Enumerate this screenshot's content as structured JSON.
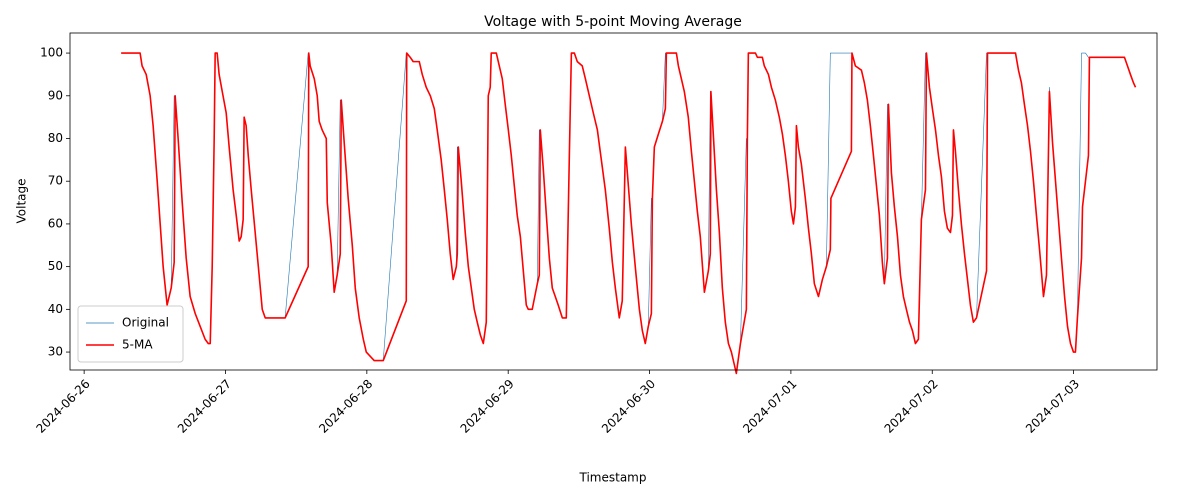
{
  "chart_data": {
    "type": "line",
    "title": "Voltage with 5-point Moving Average",
    "xlabel": "Timestamp",
    "ylabel": "Voltage",
    "xlim": [
      19899.9,
      19907.59
    ],
    "xticks": [
      {
        "value": 19900,
        "label": "2024-06-26"
      },
      {
        "value": 19901,
        "label": "2024-06-27"
      },
      {
        "value": 19902,
        "label": "2024-06-28"
      },
      {
        "value": 19903,
        "label": "2024-06-29"
      },
      {
        "value": 19904,
        "label": "2024-06-30"
      },
      {
        "value": 19905,
        "label": "2024-07-01"
      },
      {
        "value": 19906,
        "label": "2024-07-02"
      },
      {
        "value": 19907,
        "label": "2024-07-03"
      }
    ],
    "ylim": [
      25.8,
      104.7
    ],
    "yticks": [
      30,
      40,
      50,
      60,
      70,
      80,
      90,
      100
    ],
    "grid": false,
    "legend": "lower left",
    "x": [
      19900.262,
      19900.396,
      19900.41,
      19900.439,
      19900.467,
      19900.488,
      19900.517,
      19900.538,
      19900.559,
      19900.587,
      19900.616,
      19900.637,
      19900.644,
      19900.665,
      19900.694,
      19900.722,
      19900.75,
      19900.786,
      19900.821,
      19900.856,
      19900.878,
      19900.892,
      19900.906,
      19900.92,
      19900.927,
      19900.941,
      19900.955,
      19900.977,
      19901.005,
      19901.026,
      19901.054,
      19901.076,
      19901.097,
      19901.111,
      19901.125,
      19901.132,
      19901.146,
      19901.161,
      19901.182,
      19901.21,
      19901.238,
      19901.26,
      19901.281,
      19901.422,
      19901.585,
      19901.589,
      19901.599,
      19901.628,
      19901.649,
      19901.663,
      19901.684,
      19901.713,
      19901.72,
      19901.748,
      19901.769,
      19901.79,
      19901.812,
      19901.819,
      19901.84,
      19901.868,
      19901.897,
      19901.918,
      19901.946,
      19901.975,
      19901.996,
      19902.024,
      19902.052,
      19902.116,
      19902.279,
      19902.282,
      19902.307,
      19902.328,
      19902.371,
      19902.392,
      19902.42,
      19902.449,
      19902.477,
      19902.498,
      19902.526,
      19902.548,
      19902.569,
      19902.59,
      19902.611,
      19902.633,
      19902.64,
      19902.647,
      19902.668,
      19902.696,
      19902.718,
      19902.739,
      19902.76,
      19902.781,
      19902.803,
      19902.824,
      19902.845,
      19902.859,
      19902.873,
      19902.88,
      19902.916,
      19902.937,
      19902.958,
      19902.979,
      19903.001,
      19903.022,
      19903.043,
      19903.064,
      19903.086,
      19903.107,
      19903.128,
      19903.142,
      19903.17,
      19903.206,
      19903.22,
      19903.227,
      19903.248,
      19903.27,
      19903.291,
      19903.312,
      19903.333,
      19903.354,
      19903.383,
      19903.411,
      19903.432,
      19903.447,
      19903.468,
      19903.489,
      19903.524,
      19903.546,
      19903.574,
      19903.602,
      19903.631,
      19903.659,
      19903.687,
      19903.715,
      19903.737,
      19903.758,
      19903.786,
      19903.807,
      19903.829,
      19903.843,
      19903.871,
      19903.899,
      19903.928,
      19903.949,
      19903.97,
      19903.991,
      19904.013,
      19904.02,
      19904.034,
      19904.062,
      19904.091,
      19904.112,
      19904.119,
      19904.19,
      19904.204,
      19904.225,
      19904.246,
      19904.274,
      19904.296,
      19904.317,
      19904.338,
      19904.359,
      19904.388,
      19904.416,
      19904.43,
      19904.434,
      19904.451,
      19904.473,
      19904.494,
      19904.515,
      19904.536,
      19904.558,
      19904.579,
      19904.6,
      19904.614,
      19904.643,
      19904.685,
      19904.692,
      19904.699,
      19904.749,
      19904.763,
      19904.798,
      19904.812,
      19904.841,
      19904.862,
      19904.89,
      19904.918,
      19904.94,
      19904.961,
      19904.982,
      19905.003,
      19905.018,
      19905.032,
      19905.039,
      19905.053,
      19905.074,
      19905.102,
      19905.124,
      19905.145,
      19905.166,
      19905.195,
      19905.223,
      19905.251,
      19905.279,
      19905.283,
      19905.428,
      19905.432,
      19905.456,
      19905.499,
      19905.52,
      19905.541,
      19905.562,
      19905.584,
      19905.605,
      19905.626,
      19905.647,
      19905.661,
      19905.683,
      19905.69,
      19905.711,
      19905.732,
      19905.754,
      19905.775,
      19905.796,
      19905.817,
      19905.839,
      19905.86,
      19905.881,
      19905.902,
      19905.923,
      19905.952,
      19905.959,
      19905.98,
      19906.001,
      19906.023,
      19906.044,
      19906.065,
      19906.086,
      19906.107,
      19906.129,
      19906.143,
      19906.15,
      19906.164,
      19906.185,
      19906.206,
      19906.228,
      19906.249,
      19906.27,
      19906.291,
      19906.313,
      19906.384,
      19906.391,
      19906.589,
      19906.61,
      19906.631,
      19906.652,
      19906.674,
      19906.695,
      19906.716,
      19906.737,
      19906.759,
      19906.787,
      19906.808,
      19906.829,
      19906.851,
      19906.872,
      19906.893,
      19906.914,
      19906.936,
      19906.957,
      19906.978,
      19906.999,
      19907.013,
      19907.027,
      19907.056,
      19907.063,
      19907.084,
      19907.105,
      19907.112,
      19907.36,
      19907.381,
      19907.402,
      19907.424,
      19907.438
    ],
    "series": [
      {
        "name": "Original",
        "color": "#1f77b4",
        "width": 0.6,
        "values": [
          100,
          100,
          97,
          95,
          90,
          83,
          70,
          60,
          50,
          41,
          45,
          90,
          90,
          80,
          65,
          52,
          43,
          39,
          36,
          33,
          32,
          32,
          50,
          80,
          100,
          100,
          95,
          91,
          86,
          78,
          68,
          62,
          56,
          57,
          61,
          85,
          83,
          76,
          68,
          58,
          48,
          40,
          38,
          38,
          100,
          100,
          97,
          94,
          90,
          84,
          82,
          80,
          65,
          55,
          44,
          48,
          89,
          89,
          79,
          66,
          55,
          45,
          38,
          33,
          30,
          29,
          28,
          28,
          100,
          100,
          99,
          98,
          98,
          95,
          92,
          90,
          87,
          82,
          75,
          68,
          61,
          53,
          47,
          50,
          78,
          78,
          70,
          58,
          50,
          45,
          40,
          37,
          34,
          32,
          37,
          90,
          92,
          100,
          100,
          97,
          94,
          88,
          82,
          76,
          69,
          62,
          57,
          49,
          41,
          40,
          40,
          46,
          82,
          82,
          73,
          62,
          52,
          45,
          43,
          41,
          38,
          38,
          75,
          100,
          100,
          98,
          97,
          94,
          90,
          86,
          82,
          75,
          68,
          59,
          51,
          45,
          38,
          42,
          78,
          72,
          60,
          50,
          40,
          35,
          32,
          36,
          66,
          66,
          78,
          81,
          84,
          100,
          100,
          100,
          97,
          94,
          91,
          85,
          77,
          70,
          63,
          57,
          44,
          49,
          91,
          91,
          81,
          68,
          58,
          45,
          37,
          32,
          30,
          27,
          25,
          32,
          80,
          80,
          100,
          100,
          99,
          99,
          97,
          95,
          92,
          89,
          85,
          81,
          76,
          70,
          63,
          60,
          64,
          83,
          78,
          74,
          66,
          59,
          53,
          46,
          43,
          47,
          50,
          100,
          100,
          100,
          100,
          97,
          96,
          93,
          89,
          83,
          76,
          69,
          62,
          51,
          46,
          88,
          88,
          72,
          64,
          57,
          48,
          43,
          40,
          37,
          35,
          32,
          33,
          61,
          100,
          100,
          92,
          87,
          82,
          76,
          71,
          63,
          59,
          58,
          62,
          82,
          77,
          68,
          60,
          53,
          47,
          41,
          37,
          38,
          100,
          100,
          100,
          96,
          93,
          88,
          83,
          77,
          70,
          62,
          54,
          43,
          48,
          92,
          79,
          70,
          61,
          52,
          43,
          36,
          32,
          30,
          30,
          38,
          100,
          100,
          100,
          99,
          99,
          99,
          97,
          95,
          93,
          92
        ]
      },
      {
        "name": "5-MA",
        "color": "#ff0000",
        "width": 1.6,
        "values": [
          100,
          100,
          97,
          95,
          90,
          83,
          70,
          60,
          50,
          41,
          45,
          51,
          90,
          80,
          65,
          52,
          43,
          39,
          36,
          33,
          32,
          32,
          50,
          80,
          100,
          100,
          95,
          91,
          86,
          78,
          68,
          62,
          56,
          57,
          61,
          85,
          83,
          76,
          68,
          58,
          48,
          40,
          38,
          38,
          50,
          100,
          97,
          94,
          90,
          84,
          82,
          80,
          65,
          55,
          44,
          48,
          53,
          89,
          79,
          66,
          55,
          45,
          38,
          33,
          30,
          29,
          28,
          28,
          42,
          100,
          99,
          98,
          98,
          95,
          92,
          90,
          87,
          82,
          75,
          68,
          61,
          53,
          47,
          50,
          53,
          78,
          70,
          58,
          50,
          45,
          40,
          37,
          34,
          32,
          37,
          90,
          92,
          100,
          100,
          97,
          94,
          88,
          82,
          76,
          69,
          62,
          57,
          49,
          41,
          40,
          40,
          46,
          48,
          82,
          73,
          62,
          52,
          45,
          43,
          41,
          38,
          38,
          75,
          100,
          100,
          98,
          97,
          94,
          90,
          86,
          82,
          75,
          68,
          59,
          51,
          45,
          38,
          42,
          78,
          72,
          60,
          50,
          40,
          35,
          32,
          36,
          39,
          66,
          78,
          81,
          84,
          87,
          100,
          100,
          97,
          94,
          91,
          85,
          77,
          70,
          63,
          57,
          44,
          49,
          53,
          91,
          81,
          68,
          58,
          45,
          37,
          32,
          30,
          27,
          25,
          32,
          40,
          80,
          100,
          100,
          99,
          99,
          97,
          95,
          92,
          89,
          85,
          81,
          76,
          70,
          63,
          60,
          64,
          83,
          78,
          74,
          66,
          59,
          53,
          46,
          43,
          47,
          50,
          54,
          66,
          77,
          100,
          97,
          96,
          93,
          89,
          83,
          76,
          69,
          62,
          51,
          46,
          52,
          88,
          72,
          64,
          57,
          48,
          43,
          40,
          37,
          35,
          32,
          33,
          61,
          68,
          100,
          92,
          87,
          82,
          76,
          71,
          63,
          59,
          58,
          62,
          82,
          77,
          68,
          60,
          53,
          47,
          41,
          37,
          38,
          49,
          100,
          100,
          96,
          93,
          88,
          83,
          77,
          70,
          62,
          54,
          43,
          48,
          91,
          79,
          70,
          61,
          52,
          43,
          36,
          32,
          30,
          30,
          38,
          52,
          64,
          70,
          76,
          99,
          99,
          97,
          95,
          93,
          92
        ]
      }
    ]
  }
}
